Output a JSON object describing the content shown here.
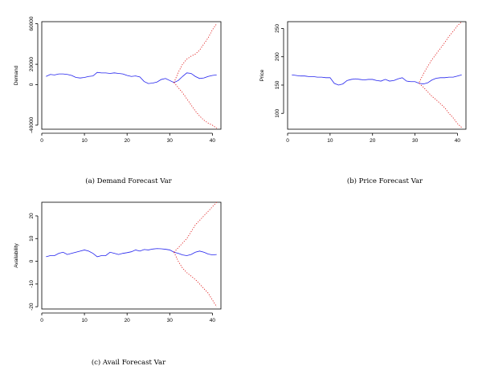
{
  "chart_data": [
    {
      "type": "line",
      "caption": "(a) Demand Forecast Var",
      "title": "",
      "xlabel": "",
      "ylabel": "Demand",
      "xlim": [
        0,
        42
      ],
      "ylim": [
        -44000,
        62000
      ],
      "x_ticks": [
        0,
        10,
        20,
        30,
        40
      ],
      "y_ticks": [
        -40000,
        0,
        20000,
        60000
      ],
      "series": [
        {
          "style": "solid",
          "color": "#2222ee",
          "x": [
            1,
            2,
            3,
            4,
            5,
            6,
            7,
            8,
            9,
            10,
            11,
            12,
            13,
            14,
            15,
            16,
            17,
            18,
            19,
            20,
            21,
            22,
            23,
            24,
            25,
            26,
            27,
            28,
            29,
            30,
            31,
            32,
            33,
            34,
            35,
            36,
            37,
            38,
            39,
            40,
            41
          ],
          "y": [
            8000,
            10000,
            9500,
            10500,
            10500,
            10000,
            9000,
            7000,
            6500,
            7000,
            8000,
            8500,
            12000,
            11500,
            11500,
            11000,
            11500,
            11000,
            10500,
            9000,
            8000,
            8500,
            7500,
            3000,
            1000,
            1500,
            2500,
            5000,
            6000,
            4000,
            2000,
            4000,
            8000,
            11500,
            11000,
            8000,
            6000,
            6500,
            8000,
            9000,
            9500
          ]
        },
        {
          "style": "dotted",
          "color": "#e02020",
          "x": [
            31,
            32,
            33,
            34,
            35,
            36,
            37,
            38,
            39,
            40,
            41
          ],
          "y": [
            2000,
            12000,
            20000,
            25000,
            28000,
            30000,
            34000,
            40000,
            46000,
            54000,
            60000
          ]
        },
        {
          "style": "dotted",
          "color": "#e02020",
          "x": [
            31,
            32,
            33,
            34,
            35,
            36,
            37,
            38,
            39,
            40,
            41
          ],
          "y": [
            2000,
            -3000,
            -8000,
            -14000,
            -20000,
            -26000,
            -31000,
            -35000,
            -38000,
            -40000,
            -43000
          ]
        }
      ]
    },
    {
      "type": "line",
      "caption": "(b) Price Forecast Var",
      "title": "",
      "xlabel": "",
      "ylabel": "Price",
      "xlim": [
        0,
        42
      ],
      "ylim": [
        72,
        262
      ],
      "x_ticks": [
        0,
        10,
        20,
        30,
        40
      ],
      "y_ticks": [
        100,
        150,
        200,
        250
      ],
      "series": [
        {
          "style": "solid",
          "color": "#2222ee",
          "x": [
            1,
            2,
            3,
            4,
            5,
            6,
            7,
            8,
            9,
            10,
            11,
            12,
            13,
            14,
            15,
            16,
            17,
            18,
            19,
            20,
            21,
            22,
            23,
            24,
            25,
            26,
            27,
            28,
            29,
            30,
            31,
            32,
            33,
            34,
            35,
            36,
            37,
            38,
            39,
            40,
            41
          ],
          "y": [
            168,
            167,
            166,
            166,
            165,
            165,
            164,
            164,
            163,
            163,
            153,
            150,
            152,
            158,
            160,
            161,
            160,
            159,
            160,
            160,
            158,
            157,
            160,
            157,
            158,
            161,
            163,
            157,
            156,
            156,
            153,
            152,
            154,
            159,
            162,
            163,
            163,
            164,
            164,
            166,
            168
          ],
          "end": 41
        },
        {
          "style": "dotted",
          "color": "#e02020",
          "x": [
            31,
            32,
            33,
            34,
            35,
            36,
            37,
            38,
            39,
            40,
            41
          ],
          "y": [
            155,
            170,
            183,
            195,
            205,
            215,
            225,
            236,
            245,
            255,
            262
          ]
        },
        {
          "style": "dotted",
          "color": "#e02020",
          "x": [
            31,
            32,
            33,
            34,
            35,
            36,
            37,
            38,
            39,
            40,
            41
          ],
          "y": [
            153,
            146,
            138,
            130,
            124,
            117,
            110,
            100,
            92,
            82,
            75
          ]
        }
      ]
    },
    {
      "type": "line",
      "caption": "(c) Avail Forecast Var",
      "title": "",
      "xlabel": "",
      "ylabel": "Availability",
      "xlim": [
        0,
        42
      ],
      "ylim": [
        -21,
        26
      ],
      "x_ticks": [
        0,
        10,
        20,
        30,
        40
      ],
      "y_ticks": [
        -20,
        -10,
        0,
        10,
        20
      ],
      "series": [
        {
          "style": "solid",
          "color": "#2222ee",
          "x": [
            1,
            2,
            3,
            4,
            5,
            6,
            7,
            8,
            9,
            10,
            11,
            12,
            13,
            14,
            15,
            16,
            17,
            18,
            19,
            20,
            21,
            22,
            23,
            24,
            25,
            26,
            27,
            28,
            29,
            30,
            31,
            32,
            33,
            34,
            35,
            36,
            37,
            38,
            39,
            40,
            41
          ],
          "y": [
            2,
            2.5,
            2.5,
            3.5,
            4,
            3,
            3.5,
            4,
            4.5,
            5,
            4.5,
            3.5,
            2,
            2.5,
            2.5,
            4,
            3.5,
            3,
            3.5,
            3.8,
            4.2,
            5,
            4.5,
            5.2,
            5,
            5.4,
            5.6,
            5.5,
            5.3,
            5,
            4,
            3.5,
            2.8,
            2.5,
            3,
            4,
            4.5,
            4,
            3.2,
            2.8,
            3
          ]
        },
        {
          "style": "dotted",
          "color": "#e02020",
          "x": [
            31,
            32,
            33,
            34,
            35,
            36,
            37,
            38,
            39,
            40,
            41
          ],
          "y": [
            4,
            6,
            8,
            10,
            13,
            16,
            18,
            20,
            22,
            24,
            26
          ]
        },
        {
          "style": "dotted",
          "color": "#e02020",
          "x": [
            31,
            32,
            33,
            34,
            35,
            36,
            37,
            38,
            39,
            40,
            41
          ],
          "y": [
            4,
            0,
            -3,
            -5,
            -6.5,
            -8,
            -10,
            -12,
            -14,
            -17,
            -20
          ]
        }
      ]
    }
  ]
}
